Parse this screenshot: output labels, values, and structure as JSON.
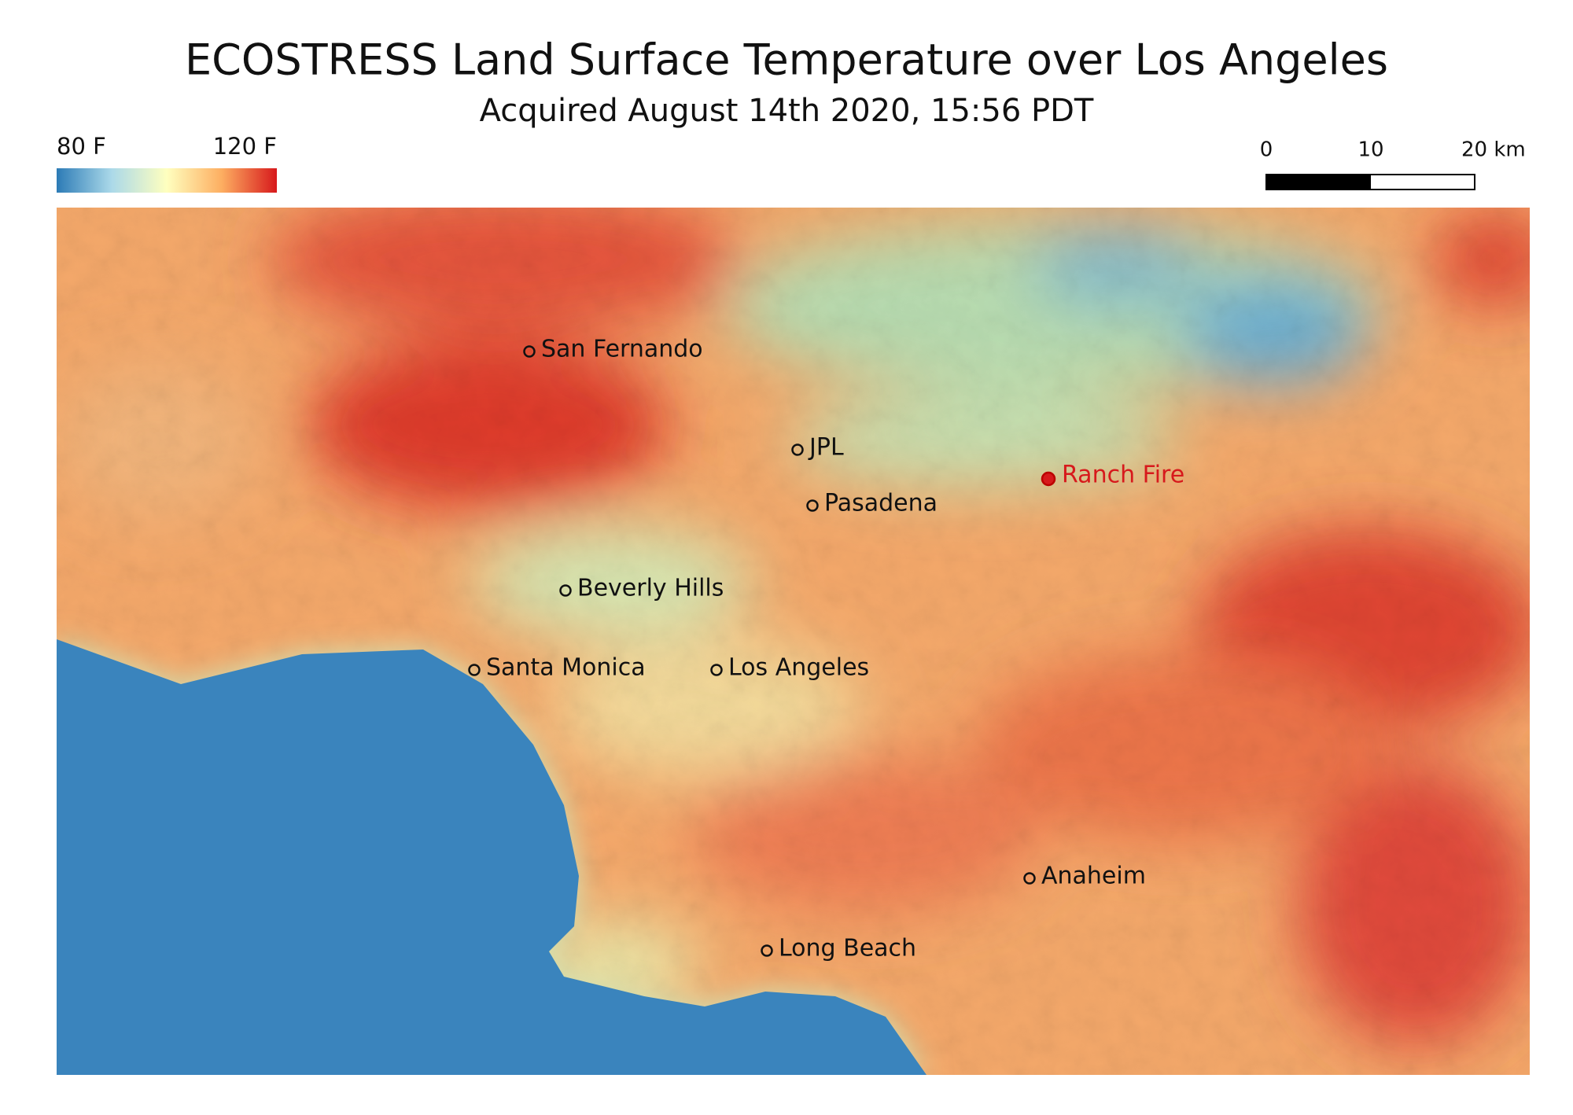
{
  "header": {
    "title": "ECOSTRESS Land Surface Temperature over Los Angeles",
    "subtitle": "Acquired August 14th 2020, 15:56 PDT"
  },
  "legend": {
    "min_label": "80 F",
    "max_label": "120 F"
  },
  "scale_bar": {
    "labels": [
      "0",
      "10",
      "20 km"
    ]
  },
  "places": [
    {
      "label": "San Fernando"
    },
    {
      "label": "JPL"
    },
    {
      "label": "Pasadena"
    },
    {
      "label": "Ranch Fire"
    },
    {
      "label": "Beverly Hills"
    },
    {
      "label": "Santa Monica"
    },
    {
      "label": "Los Angeles"
    },
    {
      "label": "Anaheim"
    },
    {
      "label": "Long Beach"
    }
  ]
}
